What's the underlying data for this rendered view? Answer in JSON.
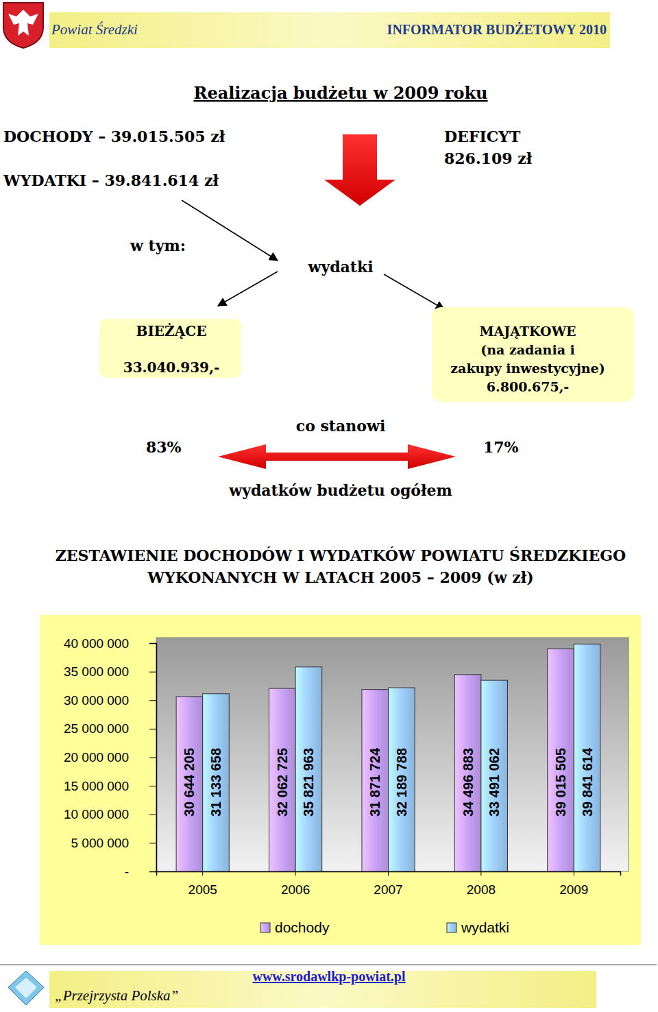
{
  "header": {
    "left": "Powiat Średzki",
    "right": "INFORMATOR BUDŻETOWY 2010"
  },
  "summary": {
    "title": "Realizacja budżetu w 2009 roku",
    "income": "DOCHODY – 39.015.505 zł",
    "expenses": "WYDATKI – 39.841.614 zł",
    "deficit_label": "DEFICYT",
    "deficit_value": "826.109 zł",
    "in_which": "w tym:",
    "expenses_word": "wydatki",
    "current": {
      "label": "BIEŻĄCE",
      "value": "33.040.939,-",
      "share": "83%"
    },
    "capital": {
      "lines": [
        "MAJĄTKOWE",
        "(na zadania i",
        "zakupy inwestycyjne)",
        "6.800.675,-"
      ],
      "share": "17%"
    },
    "constitutes": "co stanowi",
    "of_total": "wydatków budżetu ogółem"
  },
  "chart_data": {
    "type": "bar",
    "title": "ZESTAWIENIE DOCHODÓW I WYDATKÓW POWIATU ŚREDZKIEGO\nWYKONANYCH W LATACH 2005 – 2009 (w zł)",
    "categories": [
      "2005",
      "2006",
      "2007",
      "2008",
      "2009"
    ],
    "series": [
      {
        "name": "dochody",
        "color": "#c9a3f7",
        "values": [
          30644205,
          32062725,
          31871724,
          34496883,
          39015505
        ],
        "value_labels": [
          "30 644 205",
          "32 062 725",
          "31 871 724",
          "34 496 883",
          "39 015 505"
        ]
      },
      {
        "name": "wydatki",
        "color": "#9fd0fb",
        "values": [
          31133658,
          35821963,
          32189788,
          33491062,
          39841614
        ],
        "value_labels": [
          "31 133 658",
          "35 821 963",
          "32 189 788",
          "33 491 062",
          "39 841 614"
        ]
      }
    ],
    "ylim": [
      0,
      40000000
    ],
    "yticks": [
      {
        "value": 0,
        "label": "-"
      },
      {
        "value": 5000000,
        "label": "5 000 000"
      },
      {
        "value": 10000000,
        "label": "10 000 000"
      },
      {
        "value": 15000000,
        "label": "15 000 000"
      },
      {
        "value": 20000000,
        "label": "20 000 000"
      },
      {
        "value": 25000000,
        "label": "25 000 000"
      },
      {
        "value": 30000000,
        "label": "30 000 000"
      },
      {
        "value": 35000000,
        "label": "35 000 000"
      },
      {
        "value": 40000000,
        "label": "40 000 000"
      }
    ],
    "grid": false,
    "data_labels": true,
    "legend": "bottom"
  },
  "footer": {
    "slogan": "„Przejrzysta Polska”",
    "url": "www.srodawlkp-powiat.pl"
  }
}
